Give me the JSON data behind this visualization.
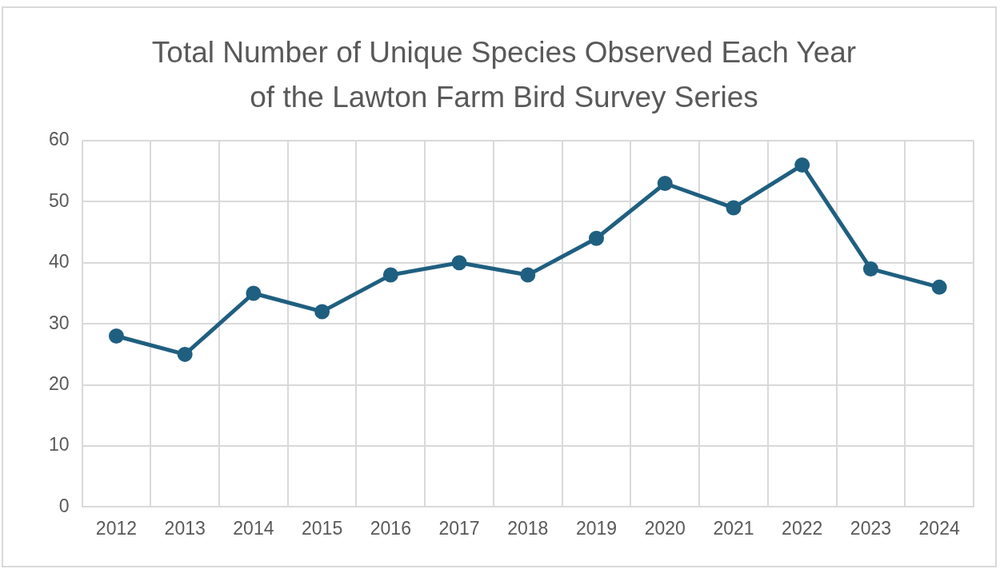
{
  "chart_data": {
    "type": "line",
    "title": "Total Number of Unique Species Observed Each Year of the Lawton Farm Bird Survey Series",
    "categories": [
      "2012",
      "2013",
      "2014",
      "2015",
      "2016",
      "2017",
      "2018",
      "2019",
      "2020",
      "2021",
      "2022",
      "2023",
      "2024"
    ],
    "series": [
      {
        "color": "#1f5f80",
        "values": [
          28,
          25,
          35,
          32,
          38,
          40,
          38,
          44,
          53,
          49,
          56,
          39,
          36
        ]
      }
    ],
    "ylim": [
      0,
      60
    ],
    "yticks": [
      0,
      10,
      20,
      30,
      40,
      50,
      60
    ],
    "grid": true,
    "marker": "circle",
    "line_style": "solid",
    "legend": false
  }
}
